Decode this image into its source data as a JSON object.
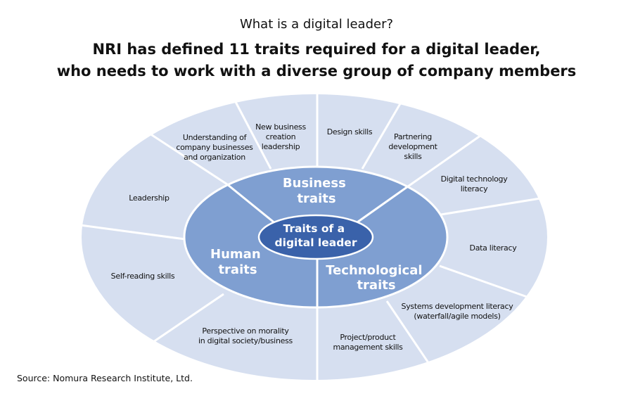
{
  "header": {
    "subtitle": "What is a digital leader?",
    "title_line1": "NRI has defined 11 traits required for a digital leader,",
    "title_line2": "who needs to work with a diverse group of company members"
  },
  "colors": {
    "outer": "#d6dff0",
    "middle": "#7f9fd1",
    "core": "#3a62aa",
    "divider": "#ffffff"
  },
  "core": {
    "lines": [
      "Traits of a",
      "digital leader"
    ]
  },
  "categories": {
    "business": {
      "lines": [
        "Business",
        "traits"
      ]
    },
    "human": {
      "lines": [
        "Human",
        "traits"
      ]
    },
    "technological": {
      "lines": [
        "Technological",
        "traits"
      ]
    }
  },
  "traits": [
    {
      "lines": [
        "New business",
        "creation",
        "leadership"
      ]
    },
    {
      "lines": [
        "Design skills"
      ]
    },
    {
      "lines": [
        "Partnering",
        "development",
        "skills"
      ]
    },
    {
      "lines": [
        "Digital technology",
        "literacy"
      ]
    },
    {
      "lines": [
        "Data literacy"
      ]
    },
    {
      "lines": [
        "Systems development literacy",
        "(waterfall/agile models)"
      ]
    },
    {
      "lines": [
        "Project/product",
        "management skills"
      ]
    },
    {
      "lines": [
        "Perspective on morality",
        "in digital society/business"
      ]
    },
    {
      "lines": [
        "Self-reading skills"
      ]
    },
    {
      "lines": [
        "Leadership"
      ]
    },
    {
      "lines": [
        "Understanding of",
        "company businesses",
        "and organization"
      ]
    }
  ],
  "source": "Source: Nomura Research Institute, Ltd."
}
